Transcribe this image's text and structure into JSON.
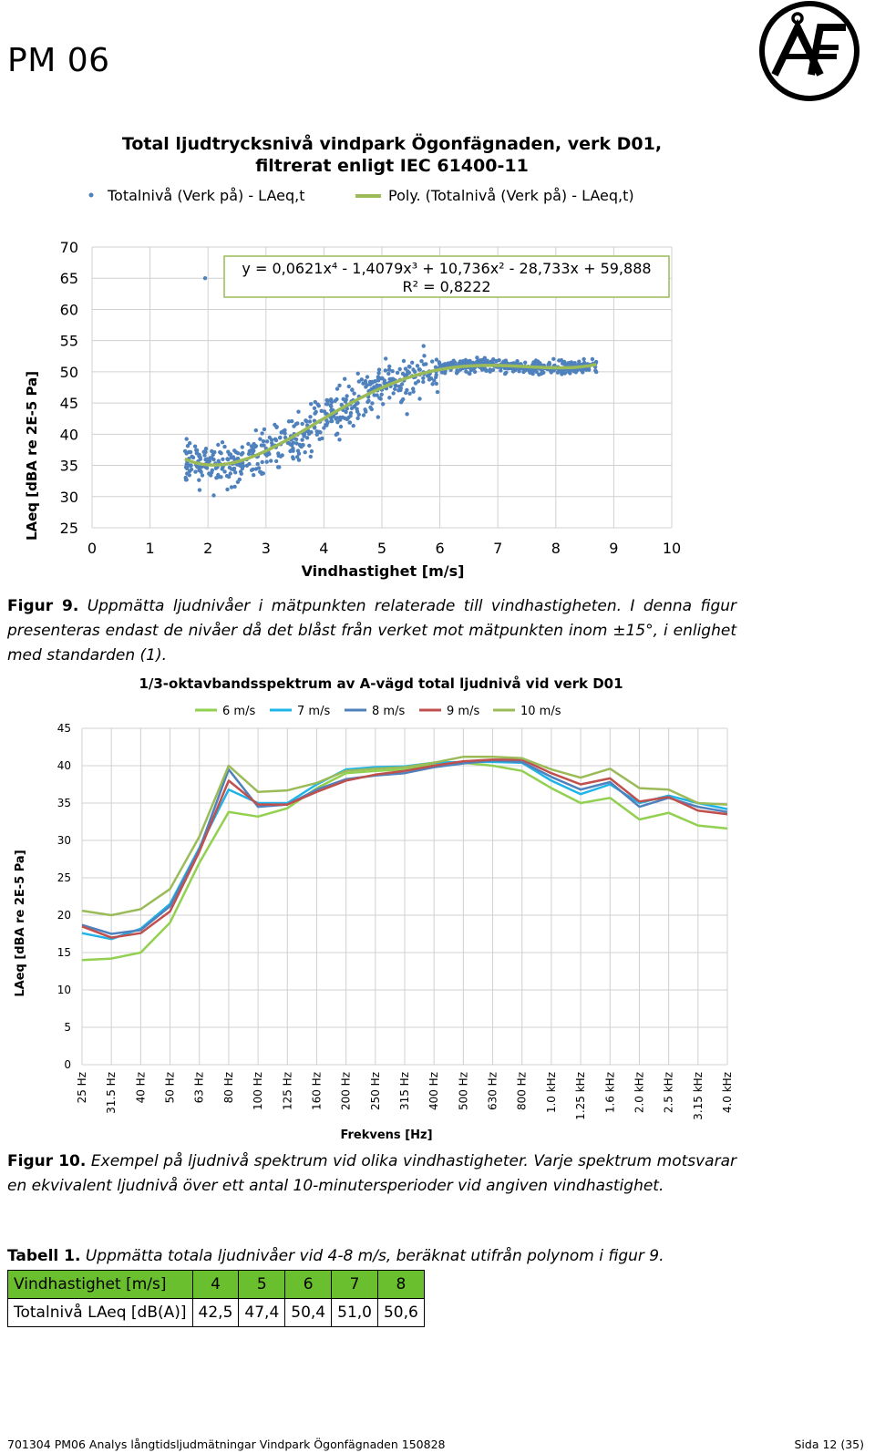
{
  "header": {
    "title": "PM 06"
  },
  "chart1": {
    "title_line1": "Total ljudtrycksnivå vindpark Ögonfägnaden, verk D01,",
    "title_line2": "filtrerat enligt IEC 61400-11",
    "legend_points": "Totalnivå (Verk på) - LAeq,t",
    "legend_trend": "Poly. (Totalnivå (Verk på) - LAeq,t)",
    "equation": "y = 0,0621x⁴ - 1,4079x³ + 10,736x² - 28,733x + 59,888",
    "r2": "R² = 0,8222",
    "ylabel": "LAeq [dBA re 2E-5 Pa]",
    "xlabel": "Vindhastighet [m/s]"
  },
  "fig9": {
    "label": "Figur 9.",
    "text": "Uppmätta ljudnivåer i mätpunkten relaterade till vindhastigheten. I denna figur presenteras endast de nivåer då det blåst från verket mot mätpunkten inom ±15°, i enlighet med standarden (1)."
  },
  "chart2": {
    "title": "1/3-oktavbandsspektrum av A-vägd total ljudnivå vid verk D01",
    "ylabel": "LAeq [dBA re 2E-5 Pa]",
    "xlabel": "Frekvens [Hz]"
  },
  "fig10": {
    "label": "Figur 10.",
    "text": "Exempel på ljudnivå spektrum vid olika vindhastigheter. Varje spektrum motsvarar en ekvivalent ljudnivå över ett antal 10-minutersperioder vid angiven vindhastighet."
  },
  "table1": {
    "label": "Tabell 1.",
    "caption": "Uppmätta totala ljudnivåer vid 4-8 m/s, beräknat utifrån polynom i figur 9.",
    "row1_header": "Vindhastighet [m/s]",
    "row2_header": "Totalnivå LAeq [dB(A)]",
    "speeds": [
      "4",
      "5",
      "6",
      "7",
      "8"
    ],
    "levels": [
      "42,5",
      "47,4",
      "50,4",
      "51,0",
      "50,6"
    ],
    "header_color": "#6abf2e"
  },
  "footer": {
    "left": "701304 PM06 Analys långtidsljudmätningar Vindpark Ögonfägnaden 150828",
    "right": "Sida 12 (35)"
  },
  "chart_data": [
    {
      "type": "scatter",
      "title": "Total ljudtrycksnivå vindpark Ögonfägnaden, verk D01, filtrerat enligt IEC 61400-11",
      "xlabel": "Vindhastighet [m/s]",
      "ylabel": "LAeq [dBA re 2E-5 Pa]",
      "xlim": [
        0,
        10
      ],
      "ylim": [
        25,
        70
      ],
      "x_ticks": [
        0,
        1,
        2,
        3,
        4,
        5,
        6,
        7,
        8,
        9,
        10
      ],
      "y_ticks": [
        25,
        30,
        35,
        40,
        45,
        50,
        55,
        60,
        65,
        70
      ],
      "grid": true,
      "legend": "top",
      "series": [
        {
          "name": "Totalnivå (Verk på) - LAeq,t",
          "color": "#4f81bd",
          "x_range": [
            1.6,
            8.7
          ],
          "outlier": {
            "x": 1.95,
            "y": 65
          }
        },
        {
          "name": "Poly. (Totalnivå (Verk på) - LAeq,t)",
          "color": "#9bbb59",
          "coefficients": [
            0.0621,
            -1.4079,
            10.736,
            -28.733,
            59.888
          ],
          "x_range": [
            1.6,
            8.7
          ]
        }
      ],
      "annotations": [
        "y = 0,0621x⁴ - 1,4079x³ + 10,736x² - 28,733x + 59,888",
        "R² = 0,8222"
      ]
    },
    {
      "type": "line",
      "title": "1/3-oktavbandsspektrum av A-vägd total ljudnivå vid verk D01",
      "xlabel": "Frekvens [Hz]",
      "ylabel": "LAeq [dBA re 2E-5 Pa]",
      "ylim": [
        0,
        45
      ],
      "y_ticks": [
        0,
        5,
        10,
        15,
        20,
        25,
        30,
        35,
        40,
        45
      ],
      "grid": true,
      "legend": "top",
      "categories": [
        "25 Hz",
        "31.5 Hz",
        "40 Hz",
        "50 Hz",
        "63 Hz",
        "80 Hz",
        "100 Hz",
        "125 Hz",
        "160 Hz",
        "200 Hz",
        "250 Hz",
        "315 Hz",
        "400 Hz",
        "500 Hz",
        "630 Hz",
        "800 Hz",
        "1.0 kHz",
        "1.25 kHz",
        "1.6 kHz",
        "2.0 kHz",
        "2.5 kHz",
        "3.15 kHz",
        "4.0 kHz"
      ],
      "series": [
        {
          "name": "6 m/s",
          "color": "#92d050",
          "values": [
            14.0,
            14.2,
            15.0,
            19.0,
            27.0,
            33.8,
            33.2,
            34.3,
            37.0,
            39.0,
            39.3,
            39.5,
            40.2,
            40.4,
            40.0,
            39.3,
            37.0,
            35.0,
            35.7,
            32.8,
            33.7,
            32.0,
            31.6
          ]
        },
        {
          "name": "7 m/s",
          "color": "#1fb4e8",
          "values": [
            17.6,
            16.8,
            18.2,
            21.5,
            29.0,
            36.8,
            35.0,
            35.0,
            37.5,
            39.5,
            39.8,
            39.9,
            40.4,
            40.5,
            40.5,
            40.4,
            38.0,
            36.2,
            37.5,
            35.0,
            36.0,
            35.0,
            34.2
          ]
        },
        {
          "name": "8 m/s",
          "color": "#4f81bd",
          "values": [
            18.7,
            17.5,
            18.0,
            21.2,
            28.8,
            39.5,
            34.5,
            34.8,
            36.8,
            38.2,
            38.7,
            39.0,
            39.8,
            40.3,
            40.7,
            40.5,
            38.5,
            36.8,
            37.8,
            34.5,
            35.7,
            34.5,
            33.8
          ]
        },
        {
          "name": "9 m/s",
          "color": "#c0504d",
          "values": [
            18.5,
            17.0,
            17.6,
            20.5,
            28.5,
            38.0,
            34.8,
            34.8,
            36.5,
            38.0,
            38.8,
            39.3,
            40.0,
            40.6,
            40.8,
            40.8,
            39.0,
            37.5,
            38.3,
            35.2,
            35.8,
            34.0,
            33.5
          ]
        },
        {
          "name": "10 m/s",
          "color": "#9bbb59",
          "values": [
            20.6,
            20.0,
            20.8,
            23.5,
            30.5,
            40.0,
            36.5,
            36.7,
            37.7,
            39.3,
            39.6,
            39.8,
            40.4,
            41.2,
            41.2,
            41.0,
            39.5,
            38.4,
            39.6,
            37.0,
            36.8,
            35.0,
            34.8
          ]
        }
      ]
    }
  ]
}
